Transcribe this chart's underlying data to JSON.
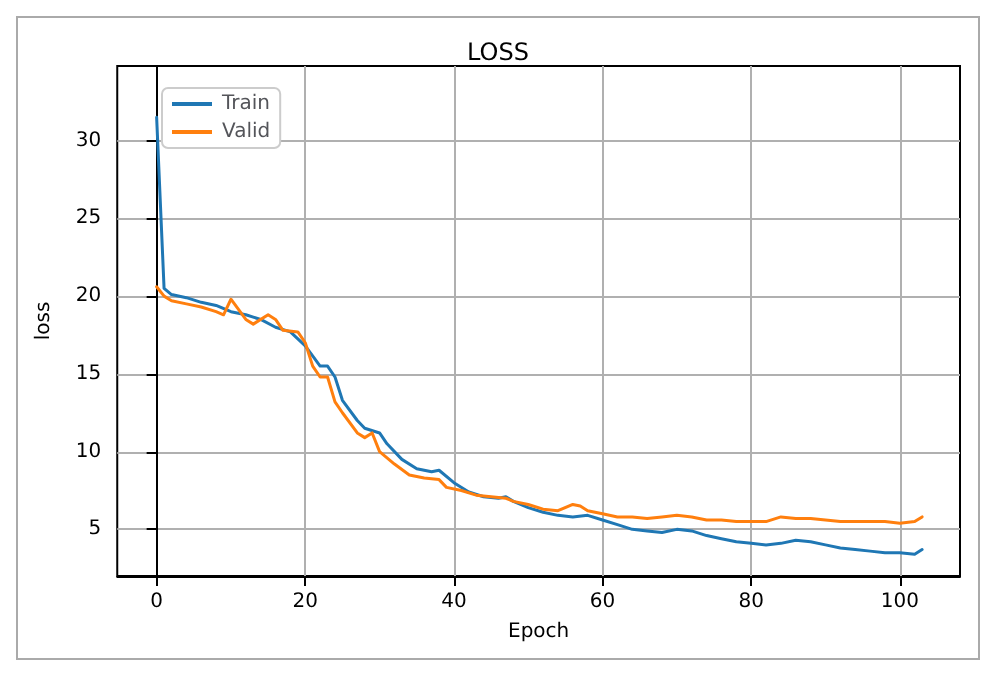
{
  "chart_data": {
    "type": "line",
    "title": "LOSS",
    "xlabel": "Epoch",
    "ylabel": "loss",
    "xlim": [
      -5.3,
      108.1
    ],
    "ylim": [
      2,
      34.8
    ],
    "xticks": [
      0,
      20,
      40,
      60,
      80,
      100
    ],
    "yticks": [
      5,
      10,
      15,
      20,
      25,
      30
    ],
    "grid": true,
    "legend": "top left",
    "marker": "none",
    "line_style": "solid",
    "series": [
      {
        "name": "Train",
        "color": "#1f77b4",
        "x": [
          0,
          1,
          2,
          4,
          6,
          8,
          10,
          12,
          14,
          16,
          18,
          20,
          22,
          23,
          24,
          25,
          27,
          28,
          30,
          31,
          33,
          35,
          37,
          38,
          40,
          42,
          44,
          46,
          47,
          48,
          50,
          52,
          54,
          56,
          58,
          60,
          62,
          64,
          66,
          68,
          70,
          72,
          74,
          76,
          78,
          80,
          82,
          84,
          86,
          88,
          90,
          92,
          94,
          96,
          98,
          100,
          102,
          103
        ],
        "values": [
          31.5,
          20.5,
          20.1,
          19.9,
          19.6,
          19.4,
          19.0,
          18.8,
          18.5,
          18.0,
          17.7,
          16.8,
          15.5,
          15.5,
          14.8,
          13.3,
          12.0,
          11.5,
          11.2,
          10.5,
          9.5,
          8.9,
          8.7,
          8.8,
          8.0,
          7.4,
          7.1,
          7.0,
          7.1,
          6.8,
          6.4,
          6.1,
          5.9,
          5.8,
          5.9,
          5.6,
          5.3,
          5.0,
          4.9,
          4.8,
          5.0,
          4.9,
          4.6,
          4.4,
          4.2,
          4.1,
          4.0,
          4.1,
          4.3,
          4.2,
          4.0,
          3.8,
          3.7,
          3.6,
          3.5,
          3.5,
          3.4,
          3.7
        ]
      },
      {
        "name": "Valid",
        "color": "#ff7f0e",
        "x": [
          0,
          1,
          2,
          4,
          6,
          8,
          9,
          10,
          12,
          13,
          15,
          16,
          17,
          19,
          20,
          21,
          22,
          23,
          24,
          25,
          27,
          28,
          29,
          30,
          32,
          34,
          36,
          38,
          39,
          41,
          43,
          45,
          47,
          48,
          50,
          52,
          54,
          56,
          57,
          58,
          60,
          62,
          64,
          66,
          68,
          70,
          72,
          74,
          76,
          78,
          80,
          82,
          84,
          86,
          88,
          90,
          92,
          94,
          96,
          98,
          100,
          102,
          103
        ],
        "values": [
          20.6,
          20.0,
          19.7,
          19.5,
          19.3,
          19.0,
          18.8,
          19.8,
          18.5,
          18.2,
          18.8,
          18.5,
          17.8,
          17.7,
          17.0,
          15.5,
          14.8,
          14.8,
          13.2,
          12.5,
          11.2,
          10.9,
          11.2,
          10.0,
          9.2,
          8.5,
          8.3,
          8.2,
          7.7,
          7.5,
          7.2,
          7.1,
          7.0,
          6.8,
          6.6,
          6.3,
          6.2,
          6.6,
          6.5,
          6.2,
          6.0,
          5.8,
          5.8,
          5.7,
          5.8,
          5.9,
          5.8,
          5.6,
          5.6,
          5.5,
          5.5,
          5.5,
          5.8,
          5.7,
          5.7,
          5.6,
          5.5,
          5.5,
          5.5,
          5.5,
          5.4,
          5.5,
          5.8
        ]
      }
    ]
  }
}
